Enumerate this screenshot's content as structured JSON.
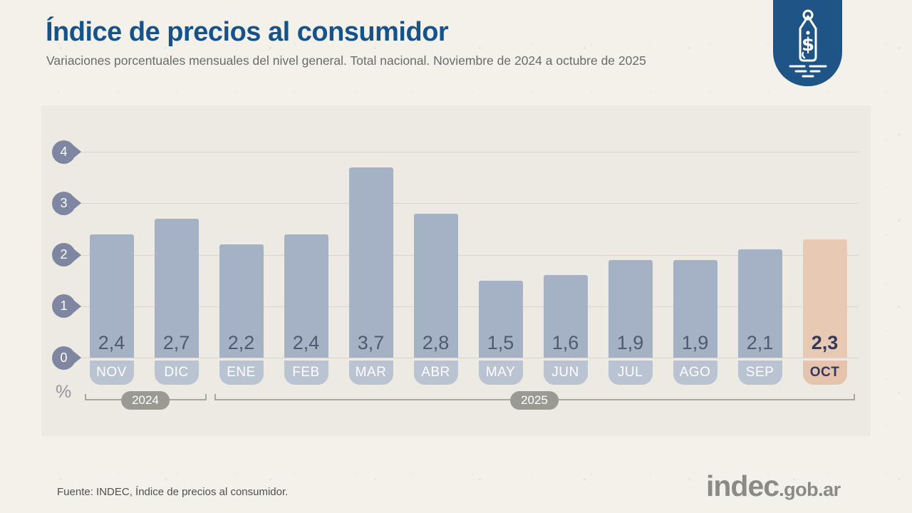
{
  "header": {
    "title": "Índice de precios al consumidor",
    "subtitle": "Variaciones porcentuales mensuales del nivel general. Total nacional. Noviembre de 2024 a octubre de 2025"
  },
  "badge": {
    "icon": "price-tag-icon",
    "currency_symbol": "$"
  },
  "chart_data": {
    "type": "bar",
    "title": "Índice de precios al consumidor",
    "categories": [
      "NOV",
      "DIC",
      "ENE",
      "FEB",
      "MAR",
      "ABR",
      "MAY",
      "JUN",
      "JUL",
      "AGO",
      "SEP",
      "OCT"
    ],
    "values": [
      2.4,
      2.7,
      2.2,
      2.4,
      3.7,
      2.8,
      1.5,
      1.6,
      1.9,
      1.9,
      2.1,
      2.3
    ],
    "value_labels": [
      "2,4",
      "2,7",
      "2,2",
      "2,4",
      "3,7",
      "2,8",
      "1,5",
      "1,6",
      "1,9",
      "1,9",
      "2,1",
      "2,3"
    ],
    "highlight_index": 11,
    "ylabel": "%",
    "yticks": [
      0,
      1,
      2,
      3,
      4
    ],
    "ylim": [
      0,
      4.3
    ],
    "grid": true,
    "legend": "none",
    "year_groups": [
      {
        "label": "2024",
        "span": [
          0,
          1
        ]
      },
      {
        "label": "2025",
        "span": [
          2,
          11
        ]
      }
    ],
    "colors": {
      "bar": "#a5b2c6",
      "bar_highlight": "#e7c9b4",
      "label_pill": "#b9c3d2",
      "label_pill_highlight": "#e5c3ad",
      "value_text": "#4e5a73",
      "value_text_highlight": "#33395a",
      "axis_marker": "#7e86a1",
      "year_pill": "#9b9a92",
      "title": "#15538a",
      "badge": "#1e5586"
    }
  },
  "footer": {
    "source": "Fuente: INDEC, Índice de precios al consumidor.",
    "logo_main": "indec",
    "logo_suffix": ".gob.ar"
  }
}
